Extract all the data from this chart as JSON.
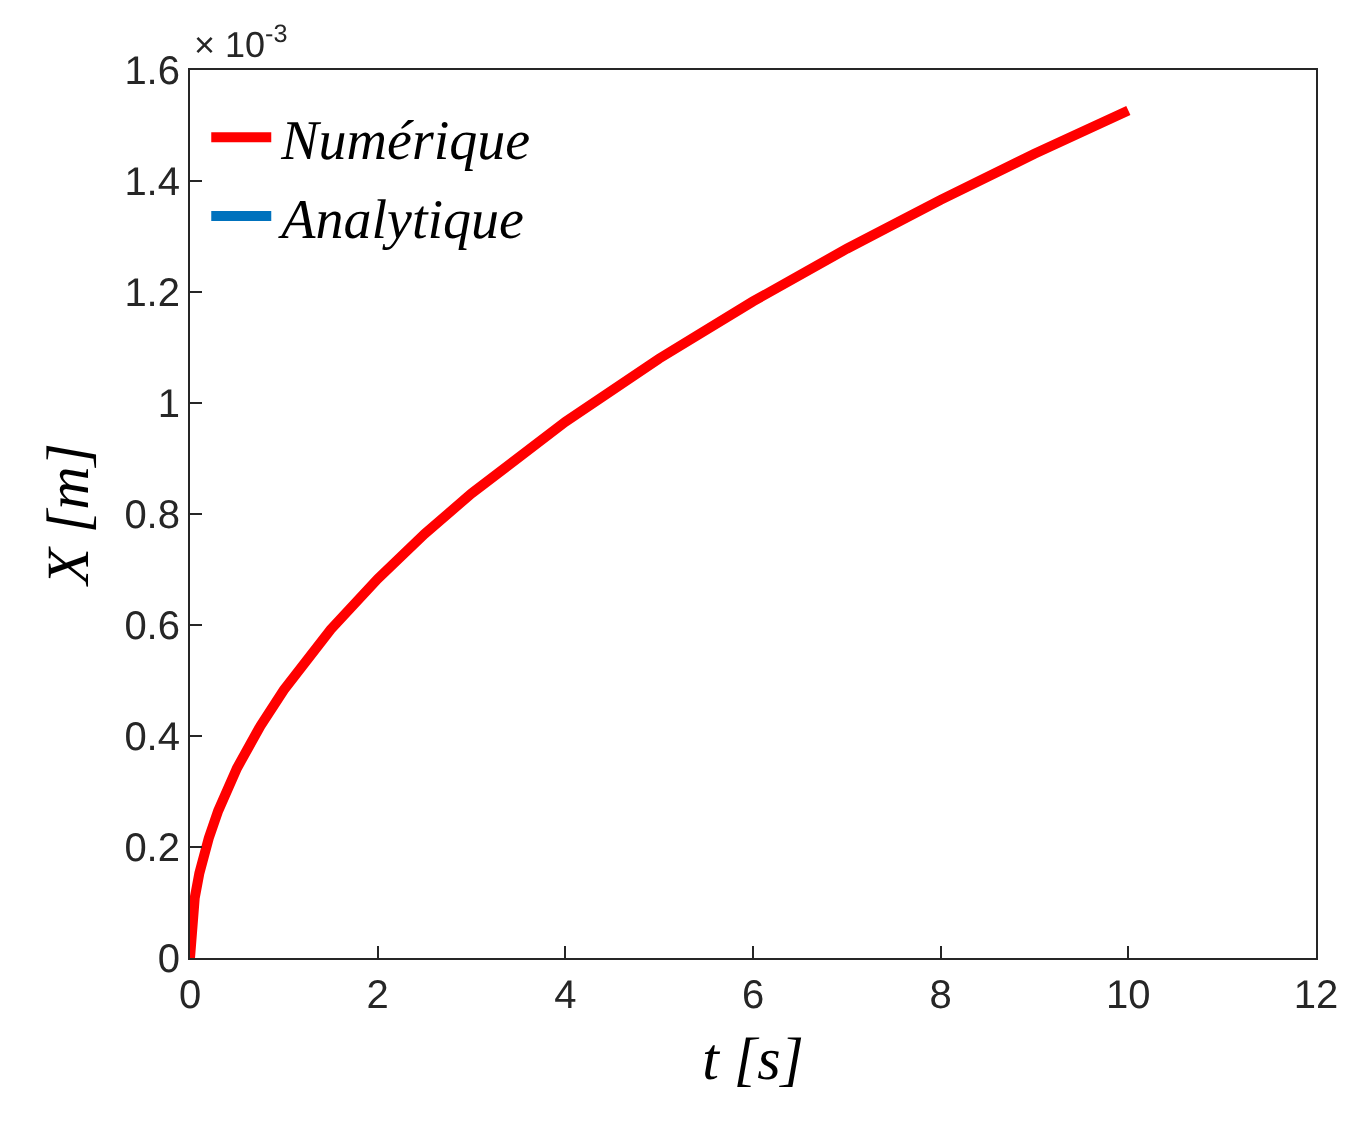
{
  "chart_data": {
    "type": "line",
    "xlabel": "t [s]",
    "ylabel": "X [m]",
    "annotations": [
      "× 10$^{-3}$"
    ],
    "x": [
      0,
      0.05,
      0.1,
      0.2,
      0.3,
      0.5,
      0.75,
      1,
      1.5,
      2,
      2.5,
      3,
      4,
      5,
      6,
      7,
      8,
      9,
      10
    ],
    "series": [
      {
        "name": "Analytique",
        "color": "#0072bd",
        "values": [
          null,
          null,
          null,
          null,
          null,
          null,
          null,
          null,
          null,
          null,
          null,
          null,
          null,
          null,
          null,
          null,
          null,
          null,
          null
        ]
      },
      {
        "name": "Numérique",
        "color": "#ff0000",
        "values": [
          0,
          0.108,
          0.153,
          0.216,
          0.265,
          0.342,
          0.418,
          0.483,
          0.592,
          0.683,
          0.764,
          0.837,
          0.966,
          1.08,
          1.183,
          1.278,
          1.366,
          1.449,
          1.527
        ]
      }
    ],
    "xlim": [
      0,
      12
    ],
    "xticks": [
      0,
      2,
      4,
      6,
      8,
      10,
      12
    ],
    "ylim": [
      0,
      1.6
    ],
    "yticks": [
      0,
      0.2,
      0.4,
      0.6,
      0.8,
      1,
      1.2,
      1.4,
      1.6
    ],
    "legend": "top left",
    "line_style": "solid"
  }
}
